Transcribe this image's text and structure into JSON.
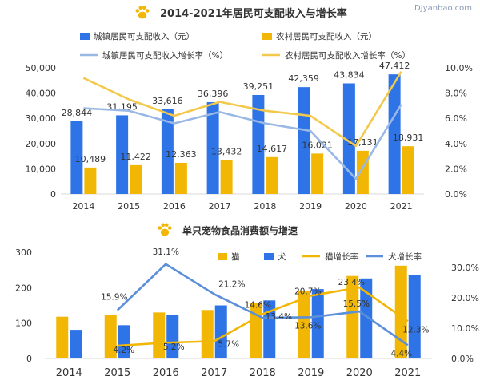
{
  "watermark": "DJyanbao.com",
  "colors": {
    "blue": "#2e74e6",
    "yellow": "#f2b705",
    "light_blue": "#8fb0e0",
    "line_blue": "#5b8fd9",
    "axis": "#d9d9d9",
    "text": "#333333"
  },
  "chart_data": [
    {
      "type": "bar",
      "title": "2014-2021年居民可支配收入与增长率",
      "icon": "paw-icon",
      "categories": [
        "2014",
        "2015",
        "2016",
        "2017",
        "2018",
        "2019",
        "2020",
        "2021"
      ],
      "series": [
        {
          "name": "城镇居民可支配收入（元）",
          "type": "bar",
          "axis": "left",
          "color": "#2e74e6",
          "values": [
            28844,
            31195,
            33616,
            36396,
            39251,
            42359,
            43834,
            47412
          ],
          "labels": [
            "28,844",
            "31,195",
            "33,616",
            "36,396",
            "39,251",
            "42,359",
            "43,834",
            "47,412"
          ]
        },
        {
          "name": "农村居民可支配收入（元）",
          "type": "bar",
          "axis": "left",
          "color": "#f2b705",
          "values": [
            10489,
            11422,
            12363,
            13432,
            14617,
            16021,
            17131,
            18931
          ],
          "labels": [
            "10,489",
            "11,422",
            "12,363",
            "13,432",
            "14,617",
            "16,021",
            "17,131",
            "18,931"
          ]
        },
        {
          "name": "城镇居民可支配收入增长率（%）",
          "type": "line",
          "axis": "right",
          "color": "#9ab8e4",
          "values": [
            6.8,
            6.6,
            5.6,
            6.5,
            5.6,
            5.0,
            1.2,
            7.1
          ]
        },
        {
          "name": "农村居民可支配收入增长率（%）",
          "type": "line",
          "axis": "right",
          "color": "#f2c94c",
          "values": [
            9.2,
            7.5,
            6.2,
            7.3,
            6.6,
            6.2,
            3.8,
            9.7
          ]
        }
      ],
      "left_axis": {
        "ylim": [
          0,
          50000
        ],
        "ticks": [
          "0",
          "10,000",
          "20,000",
          "30,000",
          "40,000",
          "50,000"
        ]
      },
      "right_axis": {
        "ylim": [
          0,
          10
        ],
        "ticks": [
          "0.0%",
          "2.0%",
          "4.0%",
          "6.0%",
          "8.0%",
          "10.0%"
        ]
      },
      "legend_position": "top"
    },
    {
      "type": "bar",
      "title": "单只宠物食品消费额与增速",
      "icon": "paw-icon",
      "categories": [
        "2014",
        "2015",
        "2016",
        "2017",
        "2018",
        "2019",
        "2020",
        "2021"
      ],
      "series": [
        {
          "name": "猫",
          "type": "bar",
          "axis": "left",
          "color": "#f2b705",
          "values": [
            118,
            124,
            130,
            137,
            157,
            190,
            233,
            262
          ]
        },
        {
          "name": "犬",
          "type": "bar",
          "axis": "left",
          "color": "#2e74e6",
          "values": [
            81,
            94,
            124,
            150,
            164,
            196,
            226,
            235
          ]
        },
        {
          "name": "猫增长率",
          "type": "line",
          "axis": "right",
          "color": "#f2b705",
          "values": [
            null,
            4.2,
            5.2,
            5.7,
            14.6,
            20.7,
            23.4,
            12.3
          ],
          "labels": [
            "",
            "4.2%",
            "5.2%",
            "5.7%",
            "14.6%",
            "20.7%",
            "23.4%",
            "12.3%"
          ]
        },
        {
          "name": "犬增长率",
          "type": "line",
          "axis": "right",
          "color": "#5b8fd9",
          "values": [
            null,
            15.9,
            31.1,
            21.2,
            13.4,
            13.6,
            15.5,
            4.4
          ],
          "labels": [
            "",
            "15.9%",
            "31.1%",
            "21.2%",
            "13.4%",
            "13.6%",
            "15.5%",
            "4.4%"
          ]
        }
      ],
      "left_axis": {
        "ylim": [
          0,
          300
        ],
        "ticks": [
          "0",
          "100",
          "200",
          "300"
        ]
      },
      "right_axis": {
        "ylim": [
          0,
          35
        ],
        "ticks": [
          "0.0%",
          "10.0%",
          "20.0%",
          "30.0%"
        ]
      },
      "legend_position": "top-right"
    }
  ]
}
